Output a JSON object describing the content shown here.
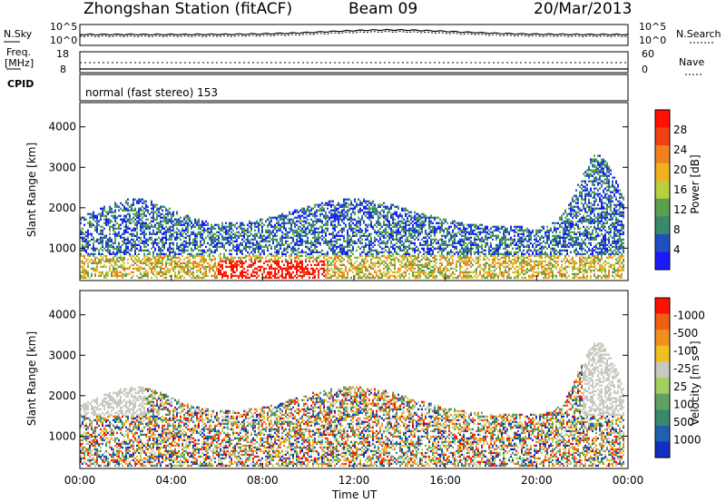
{
  "header": {
    "station": "Zhongshan Station (fitACF)",
    "beam": "Beam 09",
    "date": "20/Mar/2013"
  },
  "top_panels": {
    "nsky_label": "N.Sky",
    "nsky_tick_hi": "10^5",
    "nsky_tick_lo": "10^0",
    "nsearch_label": "N.Search",
    "nsearch_tick_hi": "10^5",
    "nsearch_tick_lo": "10^0",
    "freq_label_1": "Freq.",
    "freq_label_2": "[MHz]",
    "freq_tick_hi": "18",
    "freq_tick_lo": "8",
    "nave_label": "Nave",
    "nave_tick_hi": "60",
    "nave_tick_lo": "0",
    "cpid_label": "CPID",
    "cpid_value": "normal (fast stereo) 153"
  },
  "chart_data": [
    {
      "type": "heatmap",
      "ylabel": "Slant Range [km]",
      "yticks": [
        "1000",
        "2000",
        "3000",
        "4000"
      ],
      "ylim": [
        200,
        4600
      ],
      "colorbar_label": "Power [dB]",
      "colorbar_ticks": [
        "4",
        "8",
        "12",
        "16",
        "20",
        "24",
        "28"
      ],
      "colors": [
        "#1a1aff",
        "#2050c0",
        "#3a8a6a",
        "#5aa050",
        "#b8d040",
        "#f0b020",
        "#f08020",
        "#f04010",
        "#ff1000"
      ]
    },
    {
      "type": "heatmap",
      "ylabel": "Slant Range [km]",
      "yticks": [
        "1000",
        "2000",
        "3000",
        "4000"
      ],
      "ylim": [
        200,
        4600
      ],
      "xlabel": "Time UT",
      "xticks": [
        "00:00",
        "04:00",
        "08:00",
        "12:00",
        "16:00",
        "20:00",
        "00:00"
      ],
      "colorbar_label": "Velocity [m s⁻¹]",
      "colorbar_ticks": [
        "1000",
        "500",
        "100",
        "25",
        "-25",
        "-100",
        "-500",
        "-1000"
      ],
      "colors": [
        "#1030c0",
        "#2060b0",
        "#3a8a6a",
        "#60a060",
        "#a0d060",
        "#c8c8c0",
        "#f0c020",
        "#f09020",
        "#f06010",
        "#ff1000"
      ]
    }
  ]
}
